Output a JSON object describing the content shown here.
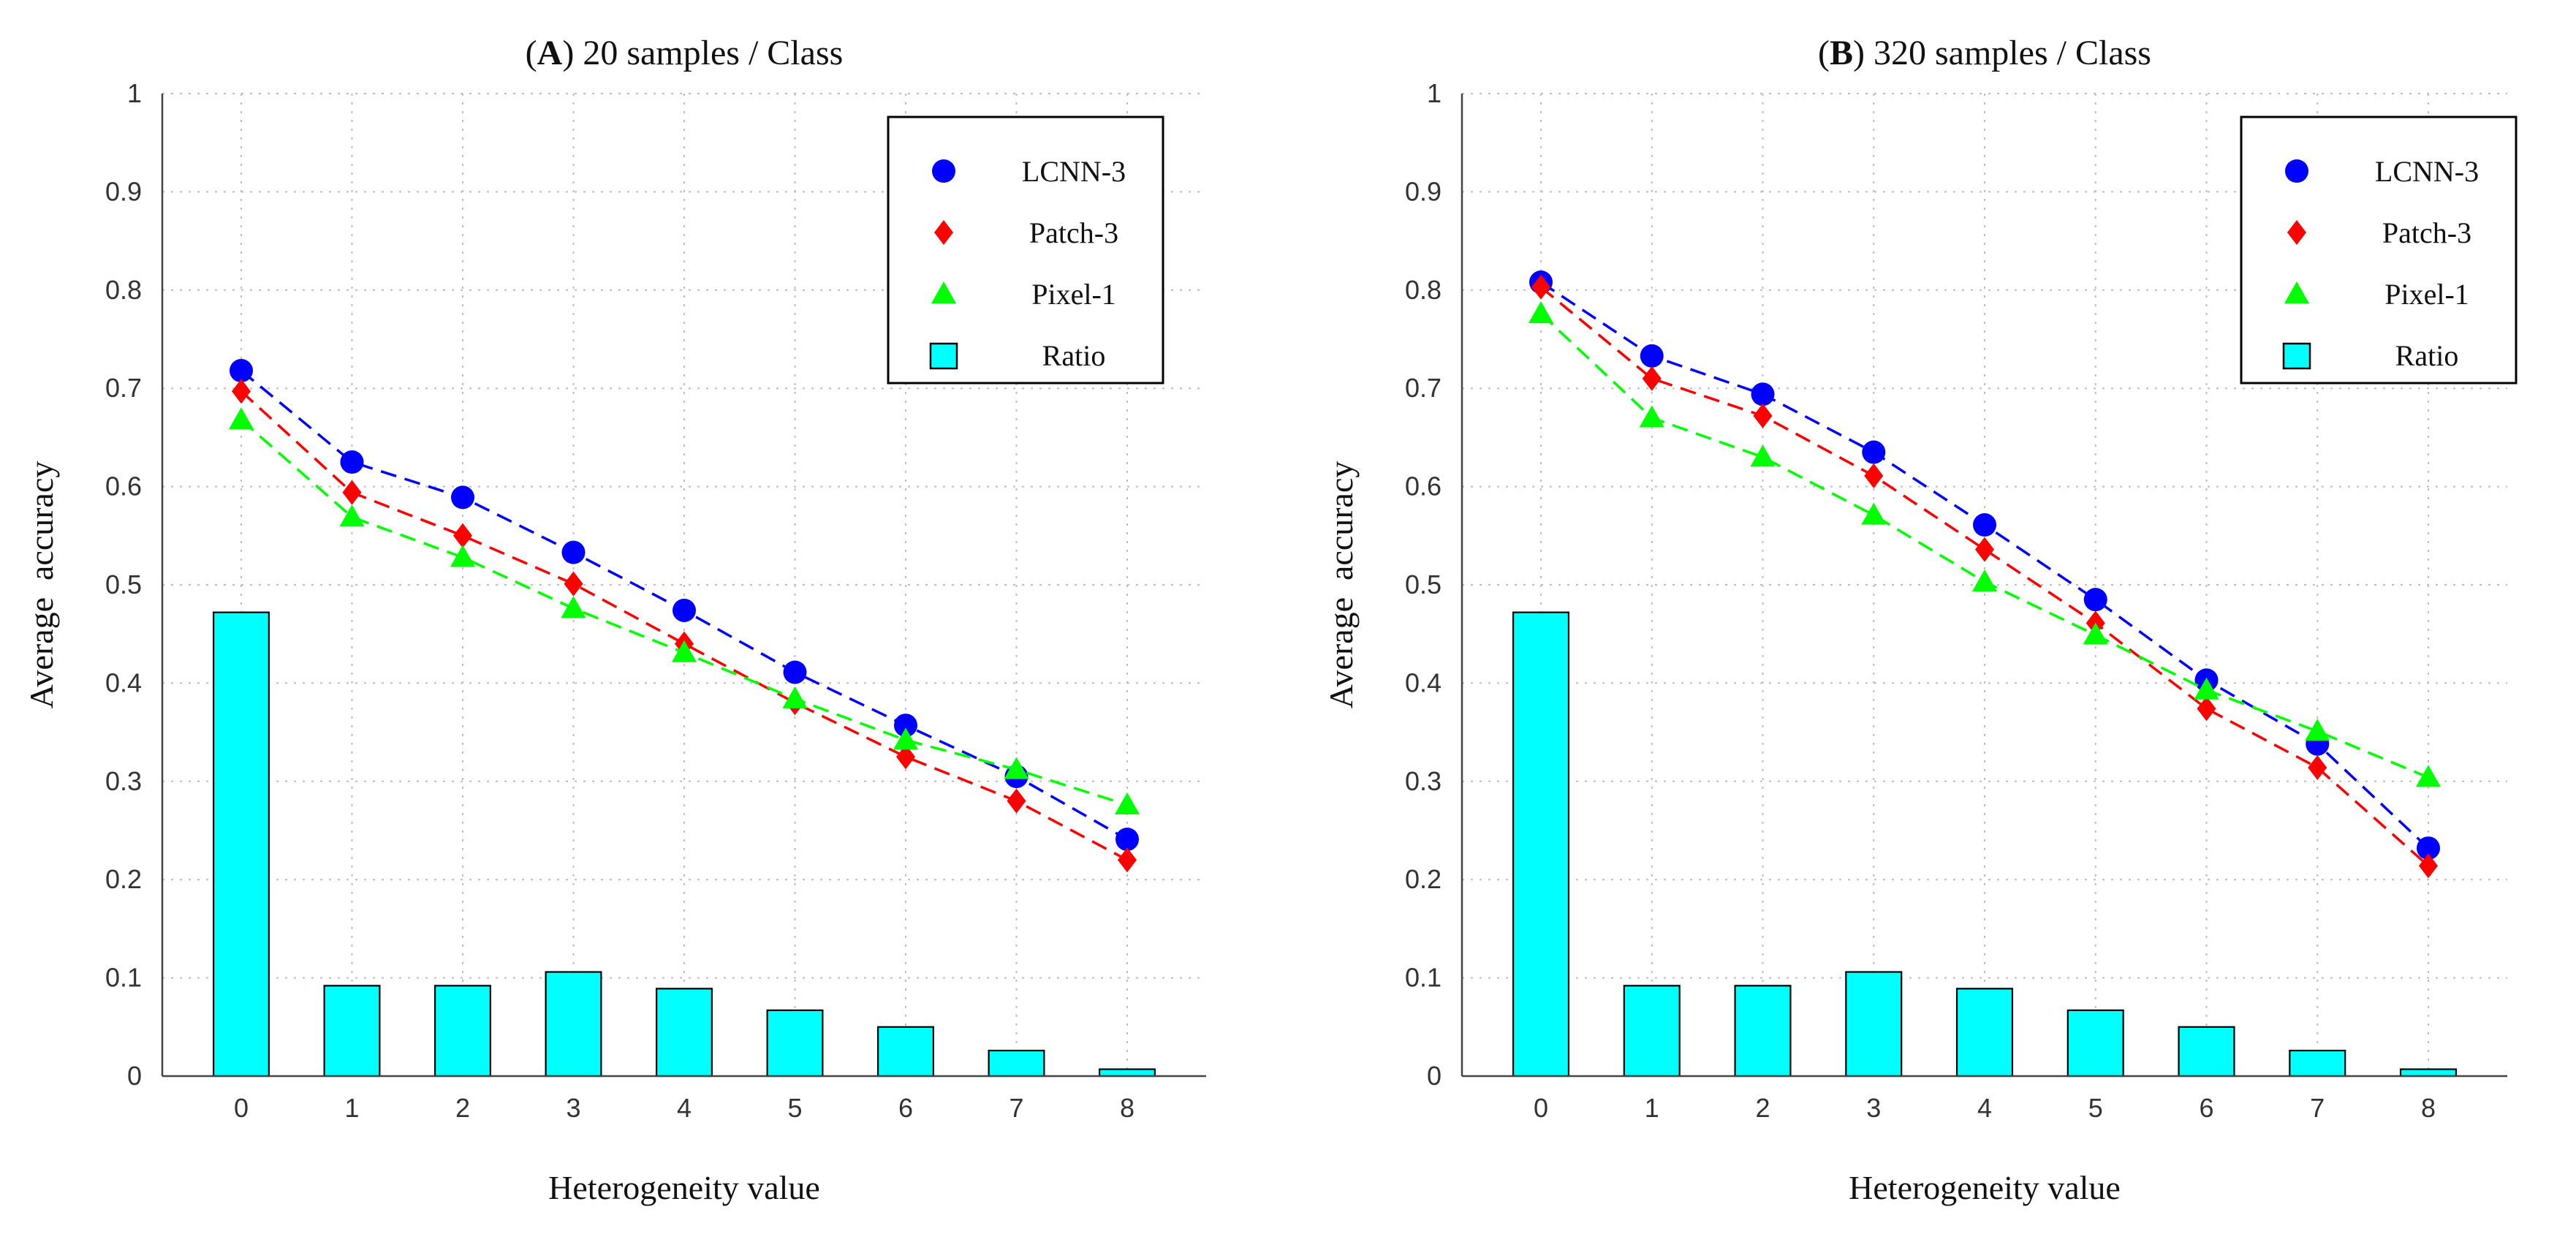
{
  "chart_data": [
    {
      "type": "bar+line",
      "title_prefix": "A",
      "title_rest": " 20 samples / Class",
      "xlabel": "Heterogeneity value",
      "ylabel": "Average  accuracy",
      "ylim": [
        0,
        1
      ],
      "grid": true,
      "legend_position": "top-right",
      "categories": [
        "0",
        "1",
        "2",
        "3",
        "4",
        "5",
        "6",
        "7",
        "8"
      ],
      "y_ticks": [
        "0",
        "0.1",
        "0.2",
        "0.3",
        "0.4",
        "0.5",
        "0.6",
        "0.7",
        "0.8",
        "0.9",
        "1"
      ],
      "bars": {
        "name": "Ratio",
        "color": "#00ffff",
        "values": [
          0.472,
          0.092,
          0.092,
          0.106,
          0.089,
          0.067,
          0.05,
          0.026,
          0.007
        ]
      },
      "series": [
        {
          "name": "LCNN-3",
          "color": "#0000ff",
          "marker": "circle",
          "values": [
            0.718,
            0.625,
            0.589,
            0.533,
            0.474,
            0.411,
            0.357,
            0.305,
            0.241
          ]
        },
        {
          "name": "Patch-3",
          "color": "#ff0000",
          "marker": "diamond",
          "values": [
            0.697,
            0.594,
            0.55,
            0.501,
            0.44,
            0.38,
            0.325,
            0.28,
            0.22
          ]
        },
        {
          "name": "Pixel-1",
          "color": "#00ff00",
          "marker": "triangle",
          "values": [
            0.668,
            0.569,
            0.528,
            0.476,
            0.431,
            0.384,
            0.342,
            0.312,
            0.276
          ]
        }
      ]
    },
    {
      "type": "bar+line",
      "title_prefix": "B",
      "title_rest": " 320 samples / Class",
      "xlabel": "Heterogeneity value",
      "ylabel": "Average  accuracy",
      "ylim": [
        0,
        1
      ],
      "grid": true,
      "legend_position": "top-right",
      "categories": [
        "0",
        "1",
        "2",
        "3",
        "4",
        "5",
        "6",
        "7",
        "8"
      ],
      "y_ticks": [
        "0",
        "0.1",
        "0.2",
        "0.3",
        "0.4",
        "0.5",
        "0.6",
        "0.7",
        "0.8",
        "0.9",
        "1"
      ],
      "bars": {
        "name": "Ratio",
        "color": "#00ffff",
        "values": [
          0.472,
          0.092,
          0.092,
          0.106,
          0.089,
          0.067,
          0.05,
          0.026,
          0.007
        ]
      },
      "series": [
        {
          "name": "LCNN-3",
          "color": "#0000ff",
          "marker": "circle",
          "values": [
            0.808,
            0.733,
            0.694,
            0.635,
            0.561,
            0.485,
            0.403,
            0.338,
            0.232
          ]
        },
        {
          "name": "Patch-3",
          "color": "#ff0000",
          "marker": "diamond",
          "values": [
            0.803,
            0.71,
            0.672,
            0.611,
            0.536,
            0.461,
            0.374,
            0.314,
            0.214
          ]
        },
        {
          "name": "Pixel-1",
          "color": "#00ff00",
          "marker": "triangle",
          "values": [
            0.776,
            0.67,
            0.63,
            0.571,
            0.503,
            0.449,
            0.393,
            0.351,
            0.304
          ]
        }
      ]
    }
  ]
}
